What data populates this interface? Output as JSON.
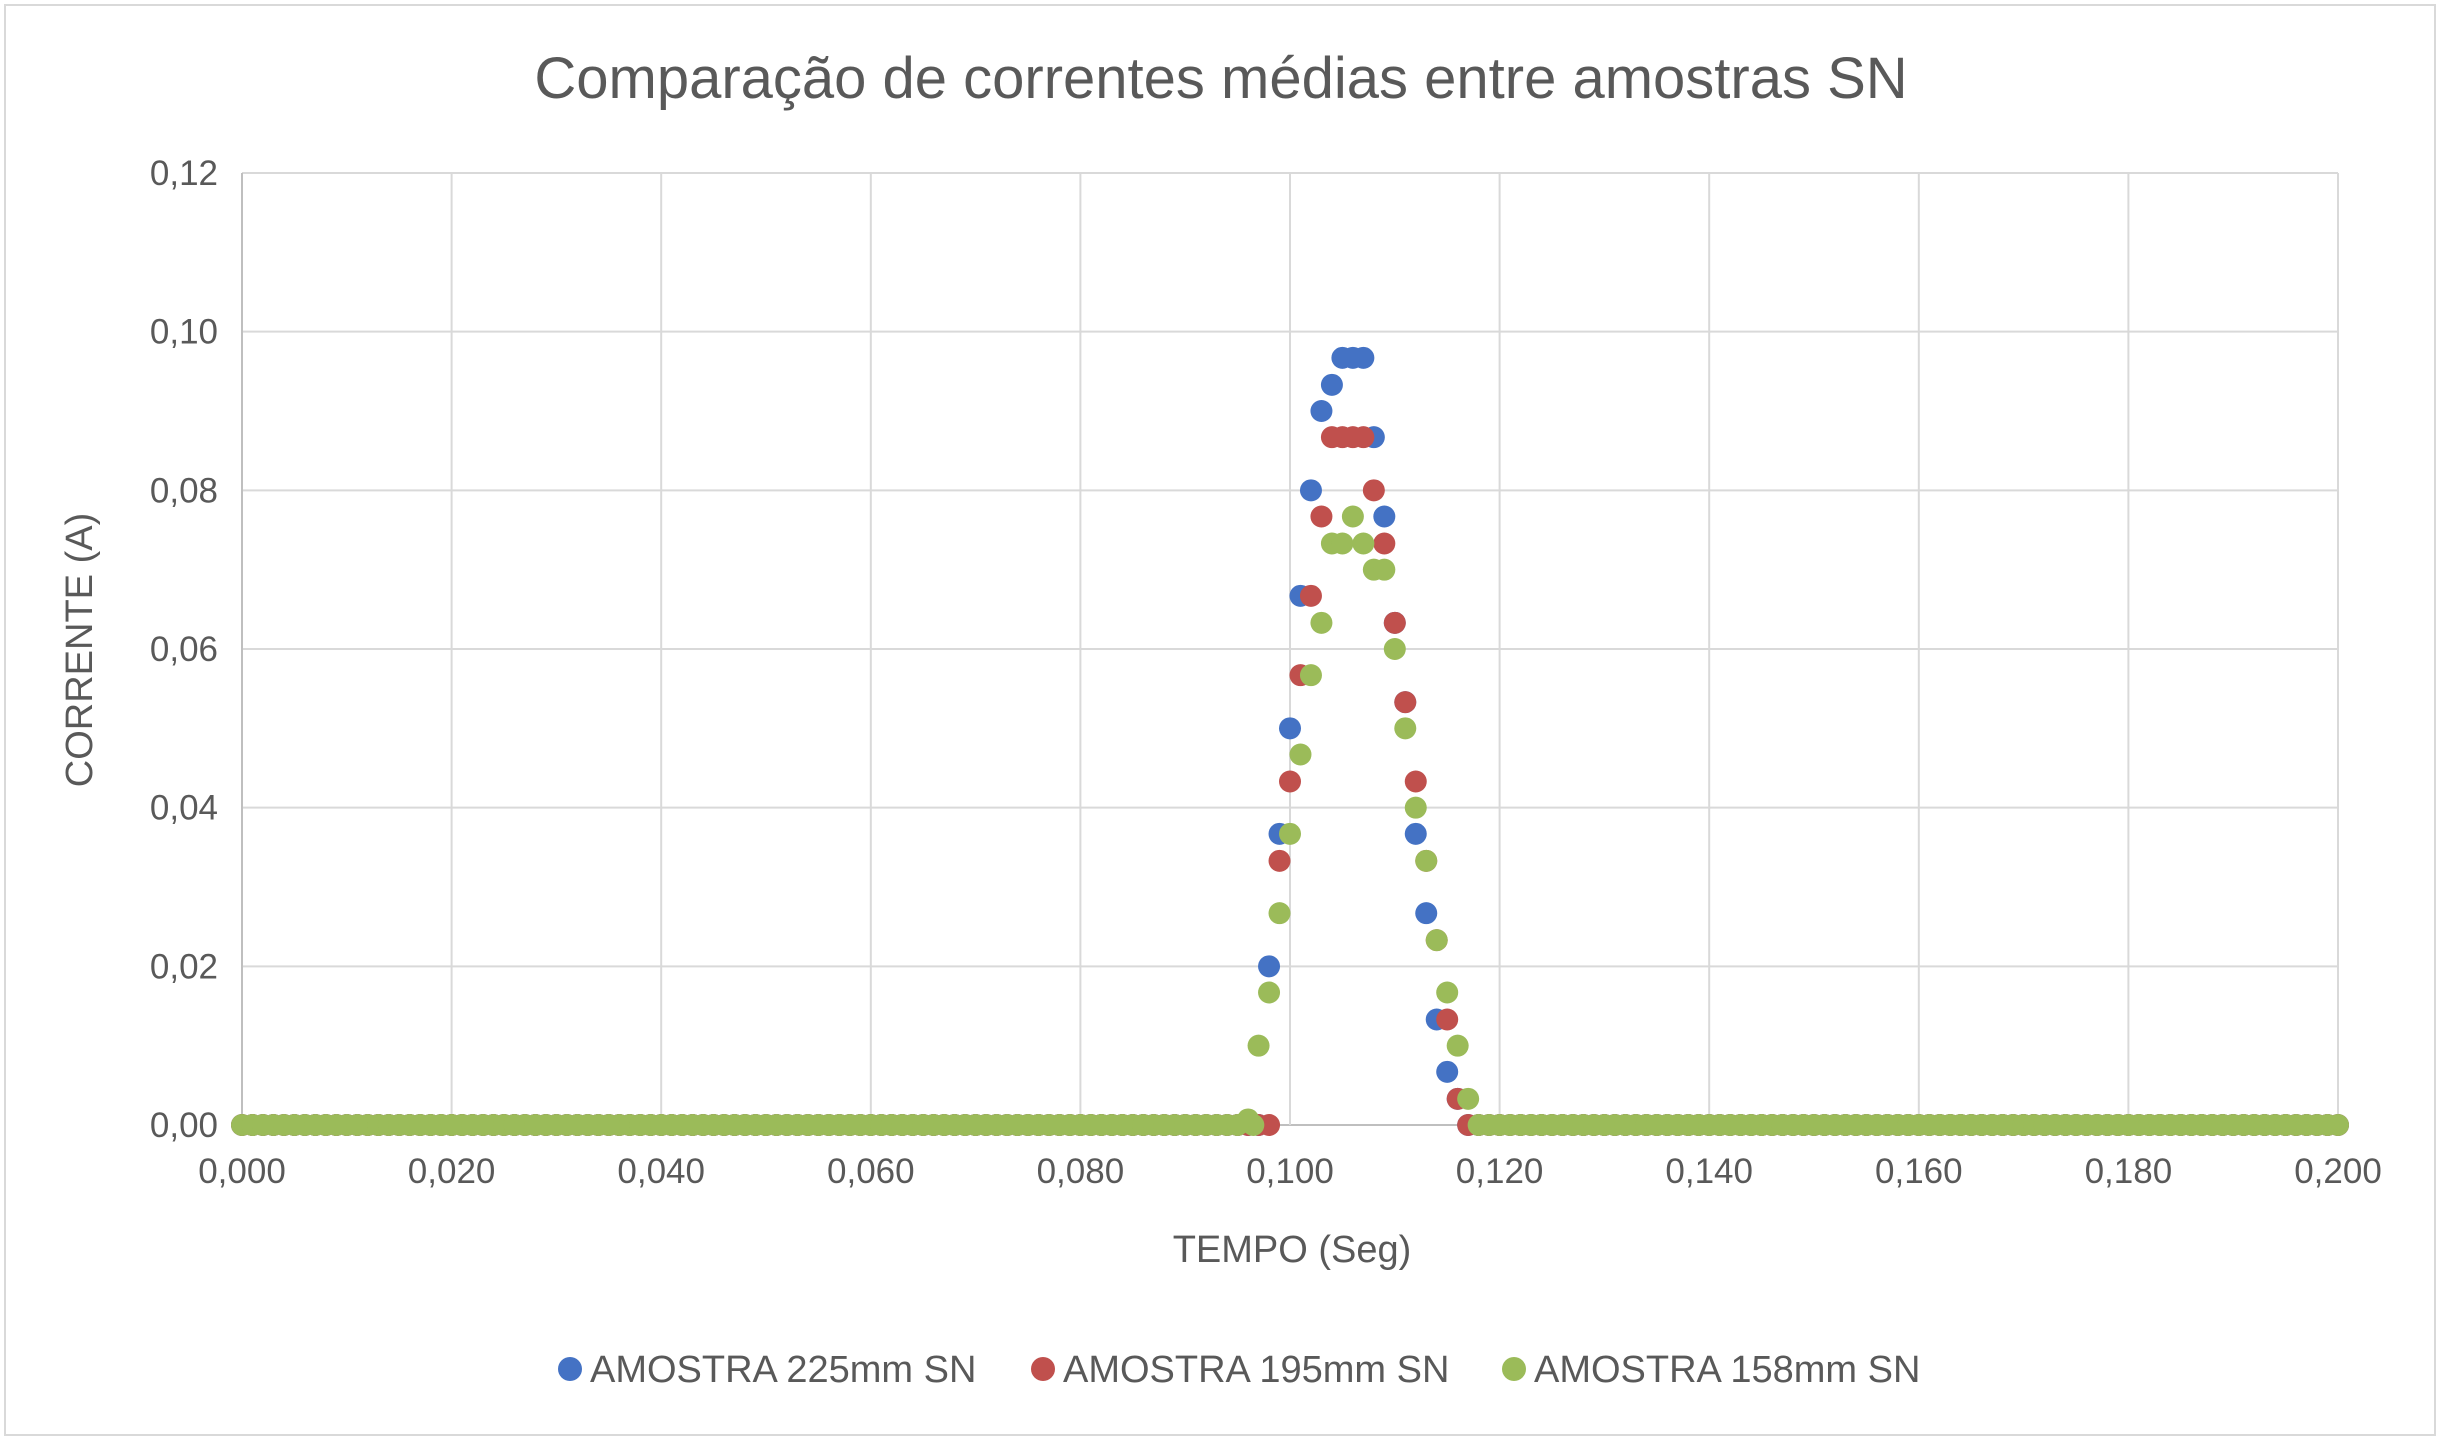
{
  "chart_data": {
    "type": "scatter",
    "title": "Comparação de correntes médias entre amostras SN",
    "xlabel": "TEMPO (Seg)",
    "ylabel": "CORRENTE (A)",
    "xlim": [
      0,
      0.2
    ],
    "ylim": [
      0,
      0.12
    ],
    "x_ticks": [
      "0,000",
      "0,020",
      "0,040",
      "0,060",
      "0,080",
      "0,100",
      "0,120",
      "0,140",
      "0,160",
      "0,180",
      "0,200"
    ],
    "y_ticks": [
      "0,00",
      "0,02",
      "0,04",
      "0,06",
      "0,08",
      "0,10",
      "0,12"
    ],
    "grid": true,
    "legend_position": "bottom",
    "baseline_sampling": {
      "x_step": 0.001,
      "y": 0
    },
    "series": [
      {
        "name": "AMOSTRA 225mm SN",
        "color": "#4472c4",
        "points": [
          [
            0.098,
            0.02
          ],
          [
            0.099,
            0.0367
          ],
          [
            0.1,
            0.05
          ],
          [
            0.101,
            0.0667
          ],
          [
            0.102,
            0.08
          ],
          [
            0.103,
            0.09
          ],
          [
            0.104,
            0.0933
          ],
          [
            0.105,
            0.0967
          ],
          [
            0.106,
            0.0967
          ],
          [
            0.107,
            0.0967
          ],
          [
            0.108,
            0.0867
          ],
          [
            0.109,
            0.0767
          ],
          [
            0.11,
            0.0633
          ],
          [
            0.111,
            0.0533
          ],
          [
            0.112,
            0.0367
          ],
          [
            0.113,
            0.0267
          ],
          [
            0.114,
            0.0133
          ],
          [
            0.115,
            0.0067
          ],
          [
            0.116,
            0.0033
          ],
          [
            0.117,
            0
          ]
        ]
      },
      {
        "name": "AMOSTRA 195mm SN",
        "color": "#c0504d",
        "points": [
          [
            0.099,
            0.0333
          ],
          [
            0.1,
            0.0433
          ],
          [
            0.101,
            0.0567
          ],
          [
            0.102,
            0.0667
          ],
          [
            0.103,
            0.0767
          ],
          [
            0.104,
            0.0867
          ],
          [
            0.105,
            0.0867
          ],
          [
            0.106,
            0.0867
          ],
          [
            0.107,
            0.0867
          ],
          [
            0.108,
            0.08
          ],
          [
            0.109,
            0.0733
          ],
          [
            0.11,
            0.0633
          ],
          [
            0.111,
            0.0533
          ],
          [
            0.112,
            0.0433
          ],
          [
            0.113,
            0.0333
          ],
          [
            0.114,
            0.0233
          ],
          [
            0.115,
            0.0133
          ],
          [
            0.116,
            0.0033
          ],
          [
            0.117,
            0
          ]
        ]
      },
      {
        "name": "AMOSTRA 158mm SN",
        "color": "#9bbb59",
        "points": [
          [
            0.096,
            0.0007
          ],
          [
            0.0965,
            0
          ],
          [
            0.097,
            0.01
          ],
          [
            0.098,
            0.0167
          ],
          [
            0.099,
            0.0267
          ],
          [
            0.1,
            0.0367
          ],
          [
            0.101,
            0.0467
          ],
          [
            0.102,
            0.0567
          ],
          [
            0.103,
            0.0633
          ],
          [
            0.104,
            0.0733
          ],
          [
            0.105,
            0.0733
          ],
          [
            0.106,
            0.0767
          ],
          [
            0.107,
            0.0733
          ],
          [
            0.108,
            0.07
          ],
          [
            0.109,
            0.07
          ],
          [
            0.11,
            0.06
          ],
          [
            0.111,
            0.05
          ],
          [
            0.112,
            0.04
          ],
          [
            0.113,
            0.0333
          ],
          [
            0.114,
            0.0233
          ],
          [
            0.115,
            0.0167
          ],
          [
            0.116,
            0.01
          ],
          [
            0.117,
            0.0033
          ]
        ]
      }
    ]
  }
}
